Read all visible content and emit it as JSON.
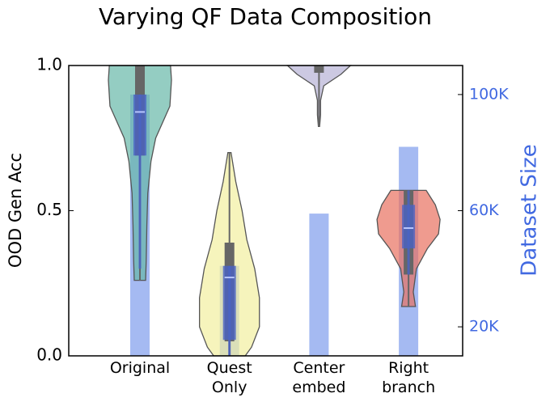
{
  "chart_data": {
    "type": "violin",
    "title": "Varying QF Data Composition",
    "ylabel": "OOD Gen Acc",
    "y2label": "Dataset Size",
    "categories": [
      "Original",
      "Quest\nOnly",
      "Center\nembed",
      "Right\nbranch"
    ],
    "ylim": [
      0,
      1
    ],
    "yticks": [
      {
        "value": 0,
        "label": "0.0"
      },
      {
        "value": 0.5,
        "label": "0.5"
      },
      {
        "value": 1,
        "label": "1.0"
      }
    ],
    "y2lim": [
      10000,
      110000
    ],
    "y2ticks": [
      {
        "value": 20000,
        "label": "20K"
      },
      {
        "value": 60000,
        "label": "60K"
      },
      {
        "value": 100000,
        "label": "100K"
      }
    ],
    "y2color": "#4169e1",
    "bars": {
      "axis": "y2",
      "color": "#7f9ced",
      "values": [
        100000,
        41000,
        59000,
        82000
      ]
    },
    "violins": [
      {
        "color": "#66b8a8",
        "values": [
          1.0,
          0.95,
          0.86,
          0.75,
          0.67,
          0.56,
          0.45,
          0.33,
          0.26
        ],
        "density": [
          0.97,
          1.0,
          0.95,
          0.5,
          0.35,
          0.25,
          0.22,
          0.2,
          0.18
        ],
        "inner": [
          0.69,
          1.0
        ]
      },
      {
        "color": "#f2f0a0",
        "values": [
          0.7,
          0.6,
          0.5,
          0.4,
          0.3,
          0.2,
          0.1,
          0.03,
          0.0
        ],
        "density": [
          0.05,
          0.2,
          0.4,
          0.55,
          0.8,
          0.95,
          0.95,
          0.7,
          0.5
        ],
        "inner": [
          0.05,
          0.39
        ]
      },
      {
        "color": "#b6b2d6",
        "values": [
          1.0,
          0.97,
          0.93,
          0.88,
          0.83,
          0.79
        ],
        "density": [
          1.0,
          0.7,
          0.15,
          0.05,
          0.05,
          0.02
        ],
        "inner": [
          0.975,
          1.0
        ]
      },
      {
        "color": "#e8705f",
        "values": [
          0.57,
          0.52,
          0.47,
          0.42,
          0.37,
          0.3,
          0.22,
          0.17
        ],
        "density": [
          0.56,
          0.85,
          1.0,
          0.95,
          0.6,
          0.25,
          0.15,
          0.22
        ],
        "inner": [
          0.28,
          0.57
        ]
      }
    ],
    "boxes": {
      "color": "#4a63c4",
      "median_color": "#b8c6ff",
      "items": [
        {
          "whislo": 0.3,
          "q1": 0.69,
          "med": 0.84,
          "q3": 0.9,
          "whishi": 0.9
        },
        {
          "whislo": 0.0,
          "q1": 0.055,
          "med": 0.27,
          "q3": 0.31,
          "whishi": 0.31
        },
        null,
        {
          "whislo": 0.28,
          "q1": 0.37,
          "med": 0.44,
          "q3": 0.52,
          "whishi": 0.57
        }
      ]
    }
  }
}
